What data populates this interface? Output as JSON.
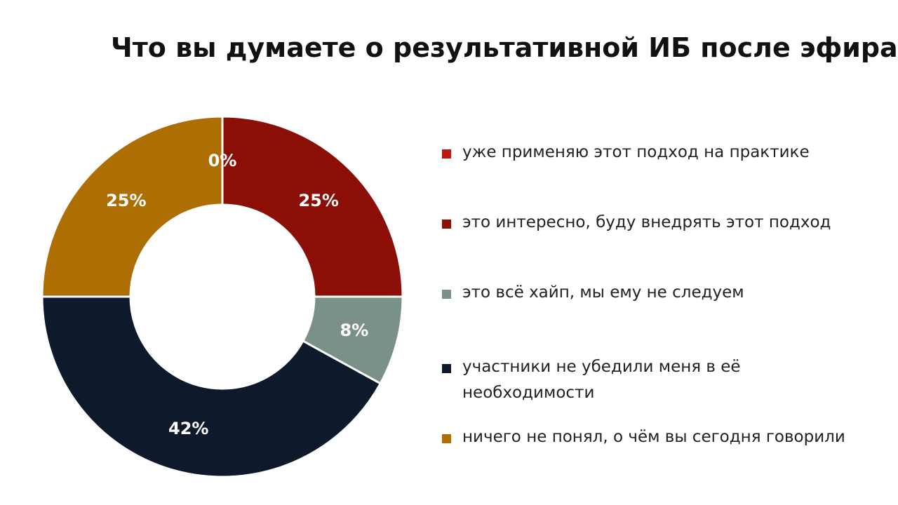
{
  "title": "Что вы думаете о результативной ИБ после эфира?",
  "chart_data": {
    "type": "pie",
    "donut": true,
    "categories": [
      "уже применяю этот подход на практике",
      "это интересно, буду внедрять этот подход",
      "это всё хайп, мы ему не следуем",
      "участники не убедили меня в её\nнеобходимости",
      "ничего не понял, о чём вы сегодня говорили"
    ],
    "values": [
      0,
      25,
      8,
      42,
      25
    ],
    "labels": [
      "0%",
      "25%",
      "8%",
      "42%",
      "25%"
    ],
    "colors": [
      "#c0170f",
      "#8b0f06",
      "#7a9189",
      "#0e1a2b",
      "#ad6f04"
    ],
    "legend_position": "right"
  }
}
